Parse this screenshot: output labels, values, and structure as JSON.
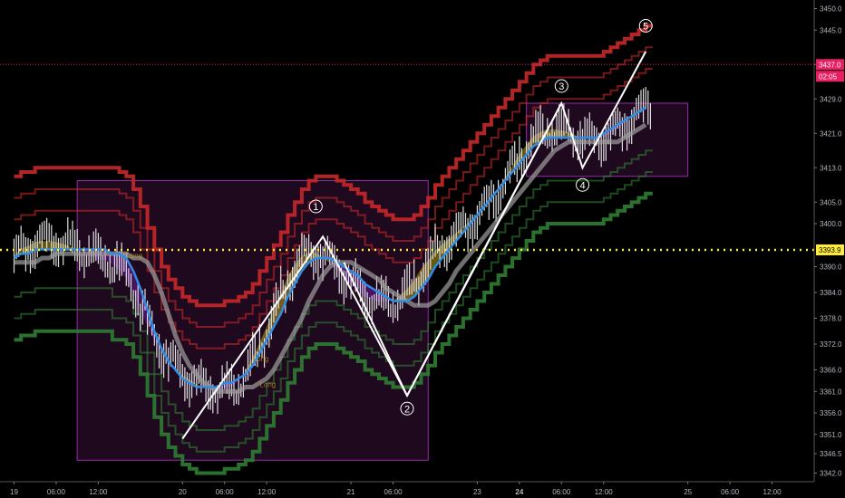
{
  "chart_data": {
    "type": "line",
    "title": "",
    "xlabel": "",
    "ylabel": "",
    "ylim": [
      3340,
      3452
    ],
    "y_ticks": [
      3342.0,
      3346.5,
      3351.0,
      3356.0,
      3361.0,
      3366.0,
      3372.0,
      3378.0,
      3384.0,
      3390.0,
      3400.0,
      3405.0,
      3413.0,
      3421.0,
      3429.0,
      3437.0,
      3445.0,
      3450.0
    ],
    "x_ticks": [
      "19",
      "06:00",
      "12:00",
      "20",
      "06:00",
      "12:00",
      "21",
      "06:00",
      "23",
      "24",
      "06:00",
      "12:00",
      "25",
      "06:00",
      "12:00"
    ],
    "x_tick_index": [
      0,
      6,
      12,
      24,
      30,
      36,
      48,
      54,
      66,
      72,
      78,
      84,
      96,
      102,
      108
    ],
    "x_range": [
      -2,
      114
    ],
    "current_price": {
      "label": "3437.0",
      "countdown": "02:05",
      "value": 3437.0,
      "color": "#e91e63"
    },
    "level_line": {
      "label": "3393.9",
      "value": 3393.9,
      "color": "#ffeb3b"
    },
    "wave_labels": [
      {
        "label": "1",
        "x": 43,
        "y": 3404
      },
      {
        "label": "2",
        "x": 56,
        "y": 3357
      },
      {
        "label": "3",
        "x": 78,
        "y": 3432
      },
      {
        "label": "4",
        "x": 81,
        "y": 3409
      },
      {
        "label": "5",
        "x": 90,
        "y": 3446
      }
    ],
    "wave_path": [
      {
        "x": 24,
        "y": 3350
      },
      {
        "x": 44,
        "y": 3397
      },
      {
        "x": 56,
        "y": 3360
      },
      {
        "x": 78,
        "y": 3428
      },
      {
        "x": 81,
        "y": 3413
      },
      {
        "x": 90,
        "y": 3440
      }
    ],
    "impulse_lines": [
      {
        "from": {
          "x": 47,
          "y": 3391
        },
        "to": {
          "x": 56,
          "y": 3360
        }
      },
      {
        "from": {
          "x": 56,
          "y": 3360
        },
        "to": {
          "x": 65,
          "y": 3388
        }
      },
      {
        "from": {
          "x": 65,
          "y": 3388
        },
        "to": {
          "x": 78,
          "y": 3428
        }
      }
    ],
    "boxes": [
      {
        "x0": 9,
        "x1": 59,
        "y0": 3345,
        "y1": 3410,
        "color": "#5a1a5a"
      },
      {
        "x0": 73,
        "x1": 96,
        "y0": 3411,
        "y1": 3428,
        "color": "#5a1a5a"
      }
    ],
    "small_labels": [
      "Long",
      "Long",
      "Long"
    ],
    "series": [
      {
        "color": "#2f8de4",
        "values": [
          3392,
          3393,
          3393,
          3394,
          3394,
          3394,
          3394,
          3394,
          3394,
          3394,
          3394,
          3394,
          3394,
          3394,
          3393,
          3393,
          3392,
          3389,
          3385,
          3380,
          3375,
          3371,
          3368,
          3366,
          3364,
          3363,
          3362,
          3362,
          3362,
          3362,
          3363,
          3363,
          3364,
          3365,
          3367,
          3370,
          3373,
          3376,
          3379,
          3383,
          3386,
          3389,
          3391,
          3392,
          3392,
          3392,
          3391,
          3390,
          3389,
          3388,
          3386,
          3385,
          3384,
          3383,
          3382,
          3382,
          3382,
          3383,
          3385,
          3387,
          3390,
          3392,
          3394,
          3396,
          3398,
          3400,
          3402,
          3404,
          3406,
          3408,
          3410,
          3412,
          3414,
          3416,
          3418,
          3419,
          3420,
          3420,
          3420,
          3420,
          3420,
          3420,
          3420,
          3420,
          3421,
          3422,
          3423,
          3424,
          3425,
          3426,
          3427
        ]
      },
      {
        "color": "#c62828",
        "values": [
          3411,
          3412,
          3412,
          3413,
          3413,
          3413,
          3413,
          3413,
          3413,
          3413,
          3413,
          3413,
          3413,
          3413,
          3413,
          3412,
          3411,
          3408,
          3404,
          3399,
          3394,
          3390,
          3387,
          3385,
          3383,
          3382,
          3381,
          3381,
          3381,
          3381,
          3382,
          3382,
          3383,
          3384,
          3386,
          3389,
          3392,
          3395,
          3398,
          3402,
          3405,
          3408,
          3410,
          3411,
          3411,
          3411,
          3410,
          3409,
          3408,
          3407,
          3405,
          3404,
          3403,
          3402,
          3401,
          3401,
          3401,
          3402,
          3404,
          3406,
          3409,
          3411,
          3413,
          3415,
          3417,
          3419,
          3421,
          3423,
          3425,
          3427,
          3429,
          3431,
          3433,
          3435,
          3437,
          3438,
          3439,
          3439,
          3439,
          3439,
          3439,
          3439,
          3439,
          3439,
          3440,
          3441,
          3442,
          3443,
          3444,
          3445,
          3446
        ]
      },
      {
        "color": "#2e7d32",
        "values": [
          3373,
          3374,
          3374,
          3375,
          3375,
          3375,
          3375,
          3375,
          3375,
          3375,
          3375,
          3375,
          3375,
          3375,
          3373,
          3373,
          3372,
          3369,
          3365,
          3360,
          3355,
          3351,
          3348,
          3346,
          3344,
          3343,
          3342,
          3342,
          3342,
          3342,
          3343,
          3343,
          3344,
          3345,
          3347,
          3350,
          3353,
          3356,
          3359,
          3363,
          3366,
          3369,
          3371,
          3372,
          3372,
          3372,
          3371,
          3370,
          3369,
          3368,
          3366,
          3365,
          3364,
          3363,
          3362,
          3362,
          3362,
          3363,
          3365,
          3367,
          3370,
          3372,
          3374,
          3376,
          3378,
          3380,
          3382,
          3384,
          3386,
          3388,
          3390,
          3392,
          3394,
          3396,
          3398,
          3399,
          3400,
          3400,
          3400,
          3400,
          3400,
          3400,
          3400,
          3400,
          3401,
          3402,
          3403,
          3404,
          3405,
          3406,
          3407
        ]
      }
    ]
  }
}
